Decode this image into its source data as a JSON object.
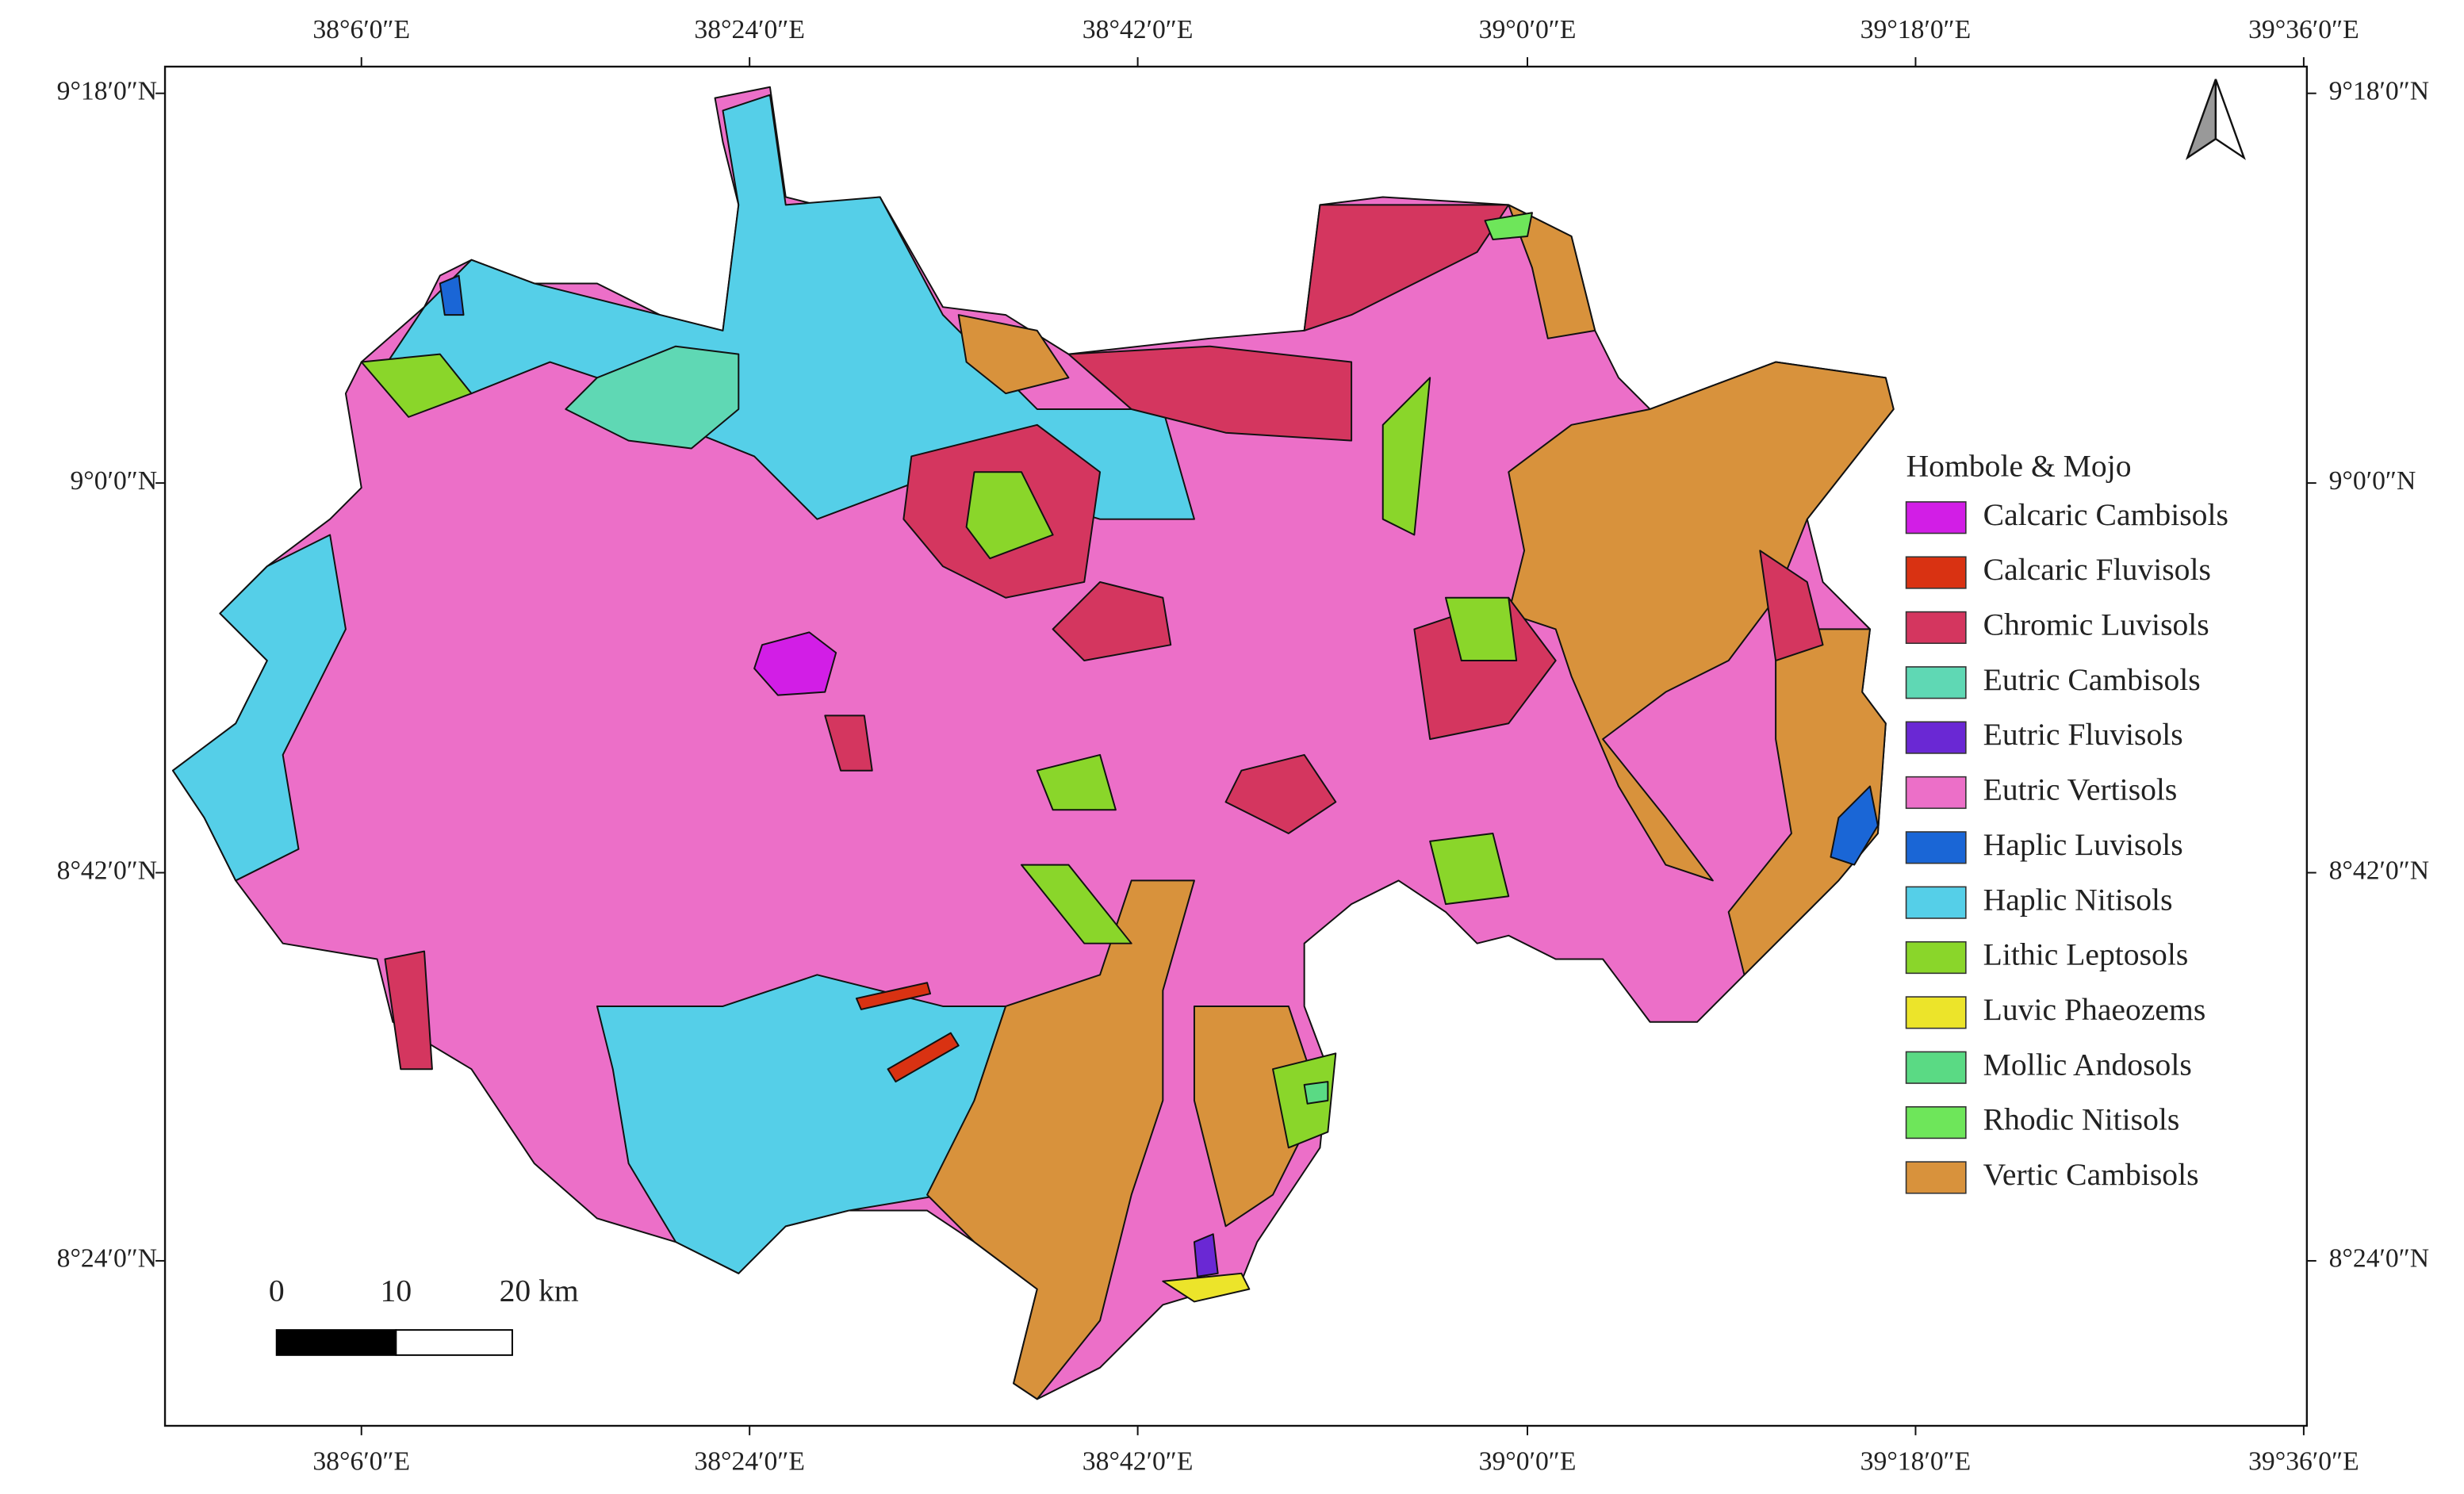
{
  "map": {
    "longitude_labels": [
      "38°6′0″E",
      "38°24′0″E",
      "38°42′0″E",
      "39°0′0″E",
      "39°18′0″E",
      "39°36′0″E"
    ],
    "latitude_labels": [
      "9°18′0″N",
      "9°0′0″N",
      "8°42′0″N",
      "8°24′0″N"
    ],
    "legend": {
      "title": "Hombole & Mojo",
      "items": [
        {
          "label": "Calcaric Cambisols",
          "color": "#d21ee6"
        },
        {
          "label": "Calcaric Fluvisols",
          "color": "#d93212"
        },
        {
          "label": "Chromic Luvisols",
          "color": "#d4365f"
        },
        {
          "label": "Eutric Cambisols",
          "color": "#5fd8b4"
        },
        {
          "label": "Eutric Fluvisols",
          "color": "#6a28d4"
        },
        {
          "label": "Eutric Vertisols",
          "color": "#ec6fc8"
        },
        {
          "label": "Haplic Luvisols",
          "color": "#1a66d6"
        },
        {
          "label": "Haplic Nitisols",
          "color": "#55cfe8"
        },
        {
          "label": "Lithic Leptosols",
          "color": "#8ad62a"
        },
        {
          "label": "Luvic Phaeozems",
          "color": "#ece42a"
        },
        {
          "label": "Mollic Andosols",
          "color": "#5ada84"
        },
        {
          "label": "Rhodic Nitisols",
          "color": "#6ee65a"
        },
        {
          "label": "Vertic Cambisols",
          "color": "#d8923c"
        }
      ]
    },
    "scale_bar": {
      "labels": [
        "0",
        "10",
        "20 km"
      ]
    }
  }
}
